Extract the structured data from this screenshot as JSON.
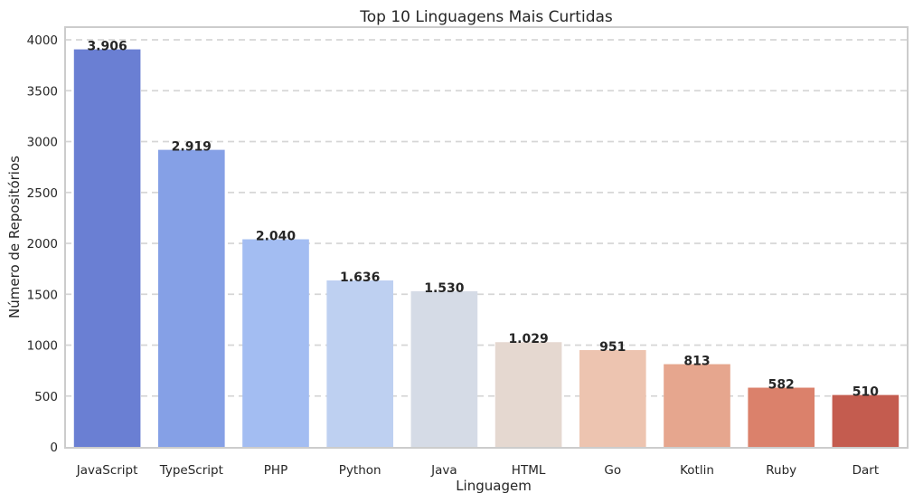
{
  "chart_data": {
    "type": "bar",
    "title": "Top 10 Linguagens Mais Curtidas",
    "xlabel": "Linguagem",
    "ylabel": "Número de Repositórios",
    "categories": [
      "JavaScript",
      "TypeScript",
      "PHP",
      "Python",
      "Java",
      "HTML",
      "Go",
      "Kotlin",
      "Ruby",
      "Dart"
    ],
    "values": [
      3906,
      2919,
      2040,
      1636,
      1530,
      1029,
      951,
      813,
      582,
      510
    ],
    "value_labels": [
      "3.906",
      "2.919",
      "2.040",
      "1.636",
      "1.530",
      "1.029",
      "951",
      "813",
      "582",
      "510"
    ],
    "colors": [
      "#6a7fd3",
      "#85a0e6",
      "#a3bdf2",
      "#bed0f1",
      "#d5dbe6",
      "#e5d8d0",
      "#edc4b0",
      "#e6a68e",
      "#db816b",
      "#c45c4f"
    ],
    "yticks": [
      0,
      500,
      1000,
      1500,
      2000,
      2500,
      3000,
      3500,
      4000
    ],
    "ylim": [
      0,
      4100
    ],
    "grid": true
  }
}
